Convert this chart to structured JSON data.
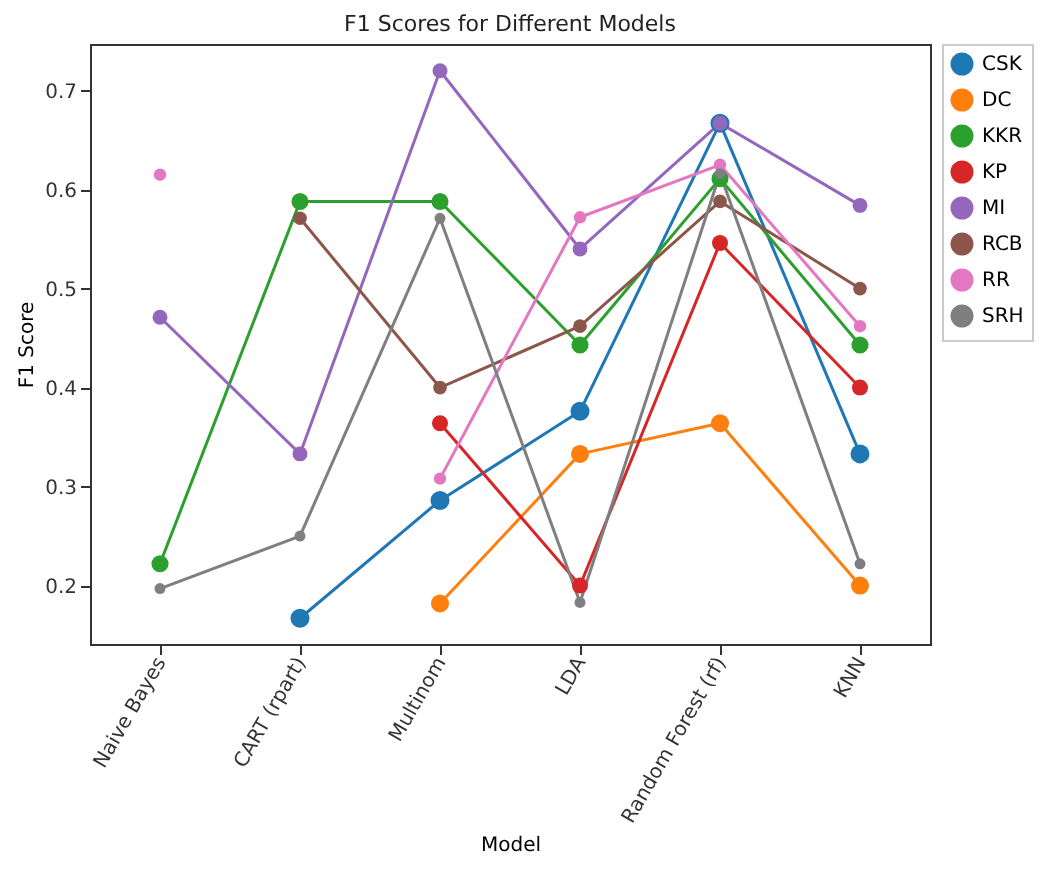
{
  "chart_data": {
    "type": "line",
    "title": "F1 Scores for Different Models",
    "xlabel": "Model",
    "ylabel": "F1 Score",
    "categories": [
      "Naive Bayes",
      "CART (rpart)",
      "Multinom",
      "LDA",
      "Random Forest (rf)",
      "KNN"
    ],
    "series": [
      {
        "name": "CSK",
        "color": "#1f77b4",
        "values": [
          null,
          0.167,
          0.286,
          0.376,
          0.667,
          0.333
        ]
      },
      {
        "name": "DC",
        "color": "#ff7f0e",
        "values": [
          null,
          null,
          0.182,
          0.333,
          0.364,
          0.2
        ]
      },
      {
        "name": "KKR",
        "color": "#2ca02c",
        "values": [
          0.222,
          0.588,
          0.588,
          0.443,
          0.611,
          0.443
        ]
      },
      {
        "name": "KP",
        "color": "#d62728",
        "values": [
          null,
          null,
          0.364,
          0.2,
          0.546,
          0.4
        ]
      },
      {
        "name": "MI",
        "color": "#9467bd",
        "values": [
          0.471,
          0.333,
          0.72,
          0.54,
          0.667,
          0.584
        ]
      },
      {
        "name": "RCB",
        "color": "#8c564b",
        "values": [
          null,
          0.571,
          0.4,
          0.462,
          0.588,
          0.5
        ]
      },
      {
        "name": "RR",
        "color": "#e377c2",
        "values": [
          0.615,
          null,
          0.308,
          0.572,
          0.625,
          0.462
        ]
      },
      {
        "name": "SRH",
        "color": "#7f7f7f",
        "values": [
          0.197,
          0.25,
          0.571,
          0.183,
          0.616,
          0.222
        ]
      }
    ],
    "ylim": [
      0.141,
      0.747
    ],
    "yticks": [
      0.2,
      0.3,
      0.4,
      0.5,
      0.6,
      0.7
    ],
    "grid": false,
    "legend": "top right",
    "marker": "circle",
    "line_style": "solid"
  }
}
